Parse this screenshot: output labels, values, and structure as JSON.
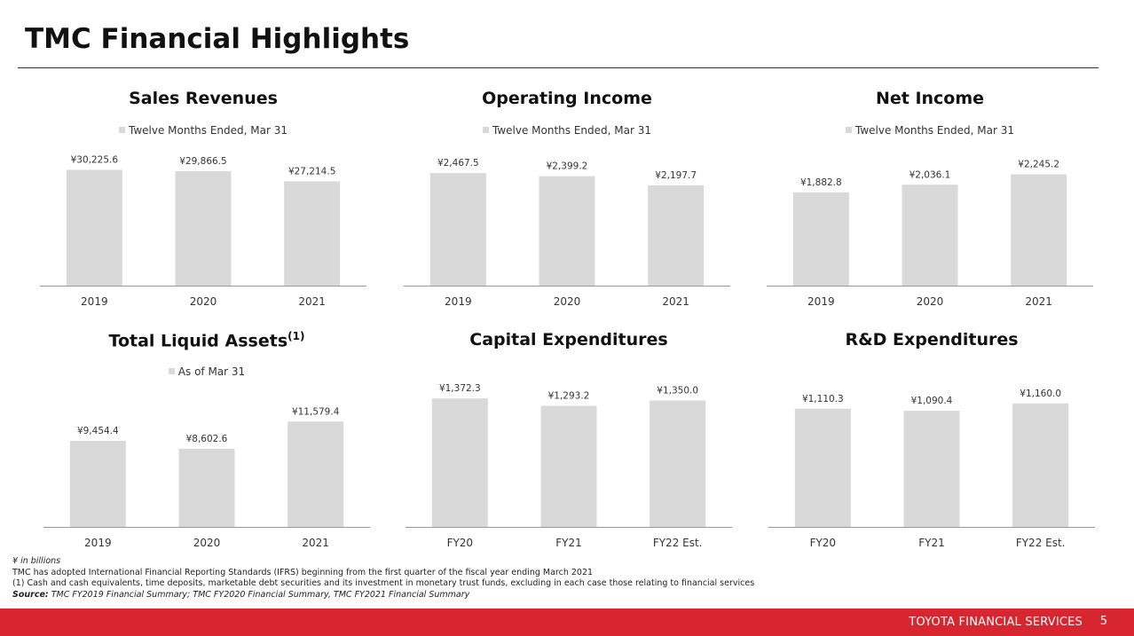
{
  "page": {
    "title": "TMC Financial Highlights",
    "number": "5"
  },
  "footer": {
    "brand": "TOYOTA FINANCIAL SERVICES"
  },
  "notes": {
    "unit": "¥ in billions",
    "line1": "TMC has adopted International Financial Reporting Standards (IFRS) beginning from the first quarter of the fiscal year ending March 2021",
    "line2": "(1) Cash and cash equivalents, time deposits, marketable debt securities and its investment in monetary trust funds, excluding in each case those relating to financial services",
    "source_label": "Source:",
    "source_text": " TMC FY2019 Financial Summary; TMC FY2020 Financial Summary, TMC FY2021 Financial Summary"
  },
  "colors": {
    "bar": "#d9d9d9",
    "accent": "#d7262f",
    "axis": "#999999"
  },
  "chart_data": [
    {
      "type": "bar",
      "title": "Sales Revenues",
      "legend": "Twelve Months Ended, Mar 31",
      "categories": [
        "2019",
        "2020",
        "2021"
      ],
      "values": [
        30225.6,
        29866.5,
        27214.5
      ],
      "labels": [
        "¥30,225.6",
        "¥29,866.5",
        "¥27,214.5"
      ],
      "ylim": [
        0,
        37500
      ]
    },
    {
      "type": "bar",
      "title": "Operating Income",
      "legend": "Twelve Months Ended, Mar 31",
      "categories": [
        "2019",
        "2020",
        "2021"
      ],
      "values": [
        2467.5,
        2399.2,
        2197.7
      ],
      "labels": [
        "¥2,467.5",
        "¥2,399.2",
        "¥2,197.7"
      ],
      "ylim": [
        0,
        3150
      ]
    },
    {
      "type": "bar",
      "title": "Net Income",
      "legend": "Twelve Months Ended, Mar 31",
      "categories": [
        "2019",
        "2020",
        "2021"
      ],
      "values": [
        1882.8,
        2036.1,
        2245.2
      ],
      "labels": [
        "¥1,882.8",
        "¥2,036.1",
        "¥2,245.2"
      ],
      "ylim": [
        0,
        2900
      ]
    },
    {
      "type": "bar",
      "title": "Total Liquid Assets",
      "title_sup": "(1)",
      "legend": "As of Mar 31",
      "categories": [
        "2019",
        "2020",
        "2021"
      ],
      "values": [
        9454.4,
        8602.6,
        11579.4
      ],
      "labels": [
        "¥9,454.4",
        "¥8,602.6",
        "¥11,579.4"
      ],
      "ylim": [
        0,
        15800
      ]
    },
    {
      "type": "bar",
      "title": "Capital Expenditures",
      "categories": [
        "FY20",
        "FY21",
        "FY22 Est."
      ],
      "values": [
        1372.3,
        1293.2,
        1350.0
      ],
      "labels": [
        "¥1,372.3",
        "¥1,293.2",
        "¥1,350.0"
      ],
      "ylim": [
        0,
        1535
      ]
    },
    {
      "type": "bar",
      "title": "R&D Expenditures",
      "categories": [
        "FY20",
        "FY21",
        "FY22 Est."
      ],
      "values": [
        1110.3,
        1090.4,
        1160.0
      ],
      "labels": [
        "¥1,110.3",
        "¥1,090.4",
        "¥1,160.0"
      ],
      "ylim": [
        0,
        1350
      ]
    }
  ]
}
